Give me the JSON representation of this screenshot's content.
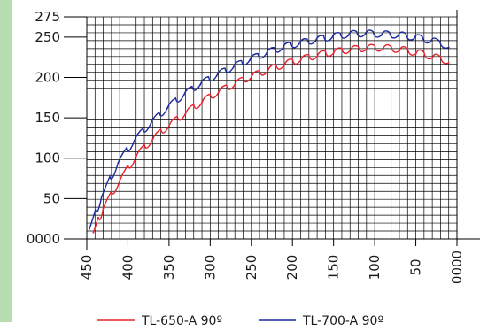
{
  "chart_data": {
    "type": "line",
    "title": "",
    "xlabel": "",
    "ylabel": "",
    "x_reversed": true,
    "xlim": [
      450,
      0
    ],
    "ylim": [
      0,
      275
    ],
    "grid": true,
    "legend_position": "bottom",
    "x_tick_labels": [
      "450",
      "400",
      "350",
      "300",
      "250",
      "200",
      "150",
      "100",
      "50",
      "0000"
    ],
    "x_tick_values": [
      450,
      400,
      350,
      300,
      250,
      200,
      150,
      100,
      50,
      0
    ],
    "y_tick_labels": [
      "0000",
      "50",
      "100",
      "150",
      "200",
      "250",
      "275"
    ],
    "y_tick_values": [
      0,
      50,
      100,
      150,
      200,
      250,
      275
    ],
    "series": [
      {
        "name": "TL-650-A 90º",
        "color": "#e8202a",
        "x": [
          442,
          430,
          410,
          390,
          370,
          350,
          330,
          310,
          290,
          270,
          250,
          230,
          210,
          190,
          170,
          150,
          130,
          110,
          90,
          70,
          50,
          30,
          10
        ],
        "y": [
          8,
          38,
          72,
          102,
          123,
          140,
          155,
          169,
          181,
          191,
          200,
          208,
          215,
          221,
          226,
          230,
          233,
          235,
          235,
          233,
          229,
          224,
          218
        ]
      },
      {
        "name": "TL-700-A 90º",
        "color": "#1b2a9e",
        "x": [
          447,
          432,
          412,
          392,
          372,
          352,
          332,
          312,
          292,
          272,
          252,
          232,
          212,
          192,
          172,
          152,
          132,
          112,
          92,
          72,
          52,
          32,
          10
        ],
        "y": [
          12,
          52,
          94,
          122,
          143,
          162,
          178,
          191,
          202,
          212,
          221,
          229,
          236,
          241,
          245,
          249,
          252,
          253,
          252,
          251,
          248,
          244,
          237
        ]
      }
    ]
  }
}
